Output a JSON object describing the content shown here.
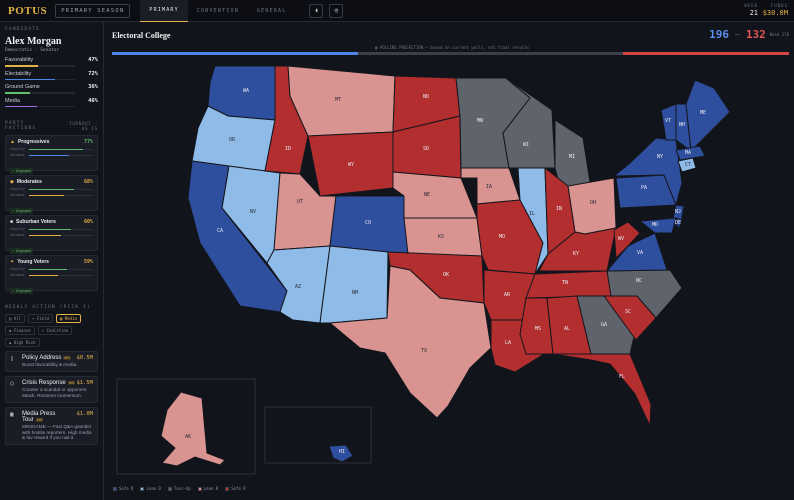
{
  "app": {
    "logo": "POTUS",
    "season_label": "PRIMARY SEASON"
  },
  "tabs": [
    {
      "label": "PRIMARY",
      "active": true
    },
    {
      "label": "CONVENTION"
    },
    {
      "label": "GENERAL"
    }
  ],
  "top_buttons": [
    {
      "icon": "speaker-icon",
      "glyph": "◖"
    },
    {
      "icon": "settings-icon",
      "glyph": "◎"
    }
  ],
  "stats": {
    "week_label": "WEEK",
    "week_value": "21",
    "funds_label": "FUNDS",
    "funds_value": "$30.0M"
  },
  "candidate": {
    "section_label": "CANDIDATE",
    "name": "Alex Morgan",
    "subtitle": "Democratic · Senator",
    "metrics": [
      {
        "label": "Favorability",
        "value": "47%",
        "level": 0.47,
        "color": "#e3b146"
      },
      {
        "label": "Electability",
        "value": "72%",
        "level": 0.72,
        "color": "#4f86e8"
      },
      {
        "label": "Ground Game",
        "value": "36%",
        "level": 0.36,
        "color": "#5fbf6a"
      },
      {
        "label": "Media",
        "value": "46%",
        "level": 0.46,
        "color": "#a26de0"
      }
    ]
  },
  "factions": {
    "label": "PARTY FACTIONS",
    "right_label": "TURNOUT · AS IS",
    "items": [
      {
        "icon": "flame-icon",
        "glyph": "▲",
        "icon_color": "#e3b146",
        "name": "Progressives",
        "pct": "77%",
        "pct_color": "#5fbf6a",
        "loyalty_label": "Loyalty",
        "turnout_label": "Turnout",
        "loyalty": 0.85,
        "turnout": 0.62,
        "engaged": "✓ Engaged"
      },
      {
        "icon": "scale-icon",
        "glyph": "◆",
        "icon_color": "#e3b146",
        "name": "Moderates",
        "pct": "68%",
        "pct_color": "#e3b146",
        "loyalty_label": "Loyalty",
        "turnout_label": "Turnout",
        "loyalty": 0.7,
        "turnout": 0.55,
        "engaged": "✓ Engaged"
      },
      {
        "icon": "house-icon",
        "glyph": "■",
        "icon_color": "#d8dbe3",
        "name": "Suburban Voters",
        "pct": "60%",
        "pct_color": "#e3b146",
        "loyalty_label": "Loyalty",
        "turnout_label": "Turnout",
        "loyalty": 0.65,
        "turnout": 0.5,
        "engaged": "✓ Engaged"
      },
      {
        "icon": "spark-icon",
        "glyph": "✦",
        "icon_color": "#e3b146",
        "name": "Young Voters",
        "pct": "59%",
        "pct_color": "#e3b146",
        "loyalty_label": "Loyalty",
        "turnout_label": "Turnout",
        "loyalty": 0.6,
        "turnout": 0.45,
        "engaged": "✓ Engaged"
      }
    ]
  },
  "weekly_action": {
    "label": "WEEKLY ACTION (PICK 1)",
    "filters": [
      {
        "label": "▤ All",
        "active": false
      },
      {
        "label": "→ Field",
        "active": false
      },
      {
        "label": "▣ Media",
        "active": true
      },
      {
        "label": "◆ Finance",
        "active": false
      },
      {
        "label": "✦ Coalition",
        "active": false
      },
      {
        "label": "▲ High Risk",
        "active": false
      }
    ],
    "actions": [
      {
        "icon": "scroll-icon",
        "glyph": "▯",
        "title": "Policy Address",
        "badge": "MO",
        "cost": "$0.5M",
        "desc": "Boost favorability & media."
      },
      {
        "icon": "shield-icon",
        "glyph": "○",
        "title": "Crisis Response",
        "badge": "MO",
        "cost": "$1.5M",
        "desc": "Counter a scandal or opponent attack. Restores momentum."
      },
      {
        "icon": "tv-icon",
        "glyph": "▣",
        "title": "Media Press Tour",
        "badge": "MG",
        "cost": "$1.0M",
        "desc": "MINIGAME — Fast Q&A gauntlet with hostile reporters. High media & fav reward if you nail it."
      }
    ]
  },
  "electoral": {
    "title": "Electoral College",
    "note": "▣ POLLING PROJECTION — based on current polls, not final results",
    "dem_votes": "196",
    "rep_votes": "132",
    "need_label": "Need 270",
    "dem_share": 0.364,
    "rep_share": 0.245
  },
  "colors": {
    "safe_d": "#2e4e9e",
    "lean_d": "#8fbbe9",
    "tossup": "#5f636c",
    "lean_r": "#d99391",
    "safe_r": "#b32e2e"
  },
  "legend": [
    {
      "label": "Safe D",
      "key": "safe_d"
    },
    {
      "label": "Lean D",
      "key": "lean_d"
    },
    {
      "label": "Toss-Up",
      "key": "tossup"
    },
    {
      "label": "Lean R",
      "key": "lean_r"
    },
    {
      "label": "Safe R",
      "key": "safe_r"
    }
  ],
  "states": [
    {
      "abbr": "WA",
      "rating": "safe_d"
    },
    {
      "abbr": "OR",
      "rating": "lean_d"
    },
    {
      "abbr": "CA",
      "rating": "safe_d"
    },
    {
      "abbr": "NV",
      "rating": "lean_d"
    },
    {
      "abbr": "ID",
      "rating": "safe_r"
    },
    {
      "abbr": "MT",
      "rating": "lean_r"
    },
    {
      "abbr": "WY",
      "rating": "safe_r"
    },
    {
      "abbr": "UT",
      "rating": "lean_r"
    },
    {
      "abbr": "AZ",
      "rating": "lean_d"
    },
    {
      "abbr": "CO",
      "rating": "safe_d"
    },
    {
      "abbr": "NM",
      "rating": "lean_d"
    },
    {
      "abbr": "ND",
      "rating": "safe_r"
    },
    {
      "abbr": "SD",
      "rating": "safe_r"
    },
    {
      "abbr": "NE",
      "rating": "lean_r"
    },
    {
      "abbr": "KS",
      "rating": "lean_r"
    },
    {
      "abbr": "OK",
      "rating": "safe_r"
    },
    {
      "abbr": "TX",
      "rating": "lean_r"
    },
    {
      "abbr": "MN",
      "rating": "tossup"
    },
    {
      "abbr": "IA",
      "rating": "lean_r"
    },
    {
      "abbr": "MO",
      "rating": "safe_r"
    },
    {
      "abbr": "AR",
      "rating": "safe_r"
    },
    {
      "abbr": "LA",
      "rating": "safe_r"
    },
    {
      "abbr": "WI",
      "rating": "tossup"
    },
    {
      "abbr": "IL",
      "rating": "lean_d"
    },
    {
      "abbr": "MI",
      "rating": "tossup"
    },
    {
      "abbr": "IN",
      "rating": "safe_r"
    },
    {
      "abbr": "OH",
      "rating": "lean_r"
    },
    {
      "abbr": "KY",
      "rating": "safe_r"
    },
    {
      "abbr": "TN",
      "rating": "safe_r"
    },
    {
      "abbr": "MS",
      "rating": "safe_r"
    },
    {
      "abbr": "AL",
      "rating": "safe_r"
    },
    {
      "abbr": "GA",
      "rating": "tossup"
    },
    {
      "abbr": "FL",
      "rating": "safe_r"
    },
    {
      "abbr": "SC",
      "rating": "safe_r"
    },
    {
      "abbr": "NC",
      "rating": "tossup"
    },
    {
      "abbr": "VA",
      "rating": "safe_d"
    },
    {
      "abbr": "WV",
      "rating": "safe_r"
    },
    {
      "abbr": "PA",
      "rating": "safe_d"
    },
    {
      "abbr": "NY",
      "rating": "safe_d"
    },
    {
      "abbr": "VT",
      "rating": "safe_d"
    },
    {
      "abbr": "NH",
      "rating": "safe_d"
    },
    {
      "abbr": "ME",
      "rating": "safe_d"
    },
    {
      "abbr": "MA",
      "rating": "safe_d"
    },
    {
      "abbr": "CT",
      "rating": "lean_d"
    },
    {
      "abbr": "NJ",
      "rating": "safe_d"
    },
    {
      "abbr": "MD",
      "rating": "safe_d"
    },
    {
      "abbr": "DE",
      "rating": "safe_d"
    },
    {
      "abbr": "AK",
      "rating": "lean_r"
    },
    {
      "abbr": "HI",
      "rating": "safe_d"
    }
  ]
}
